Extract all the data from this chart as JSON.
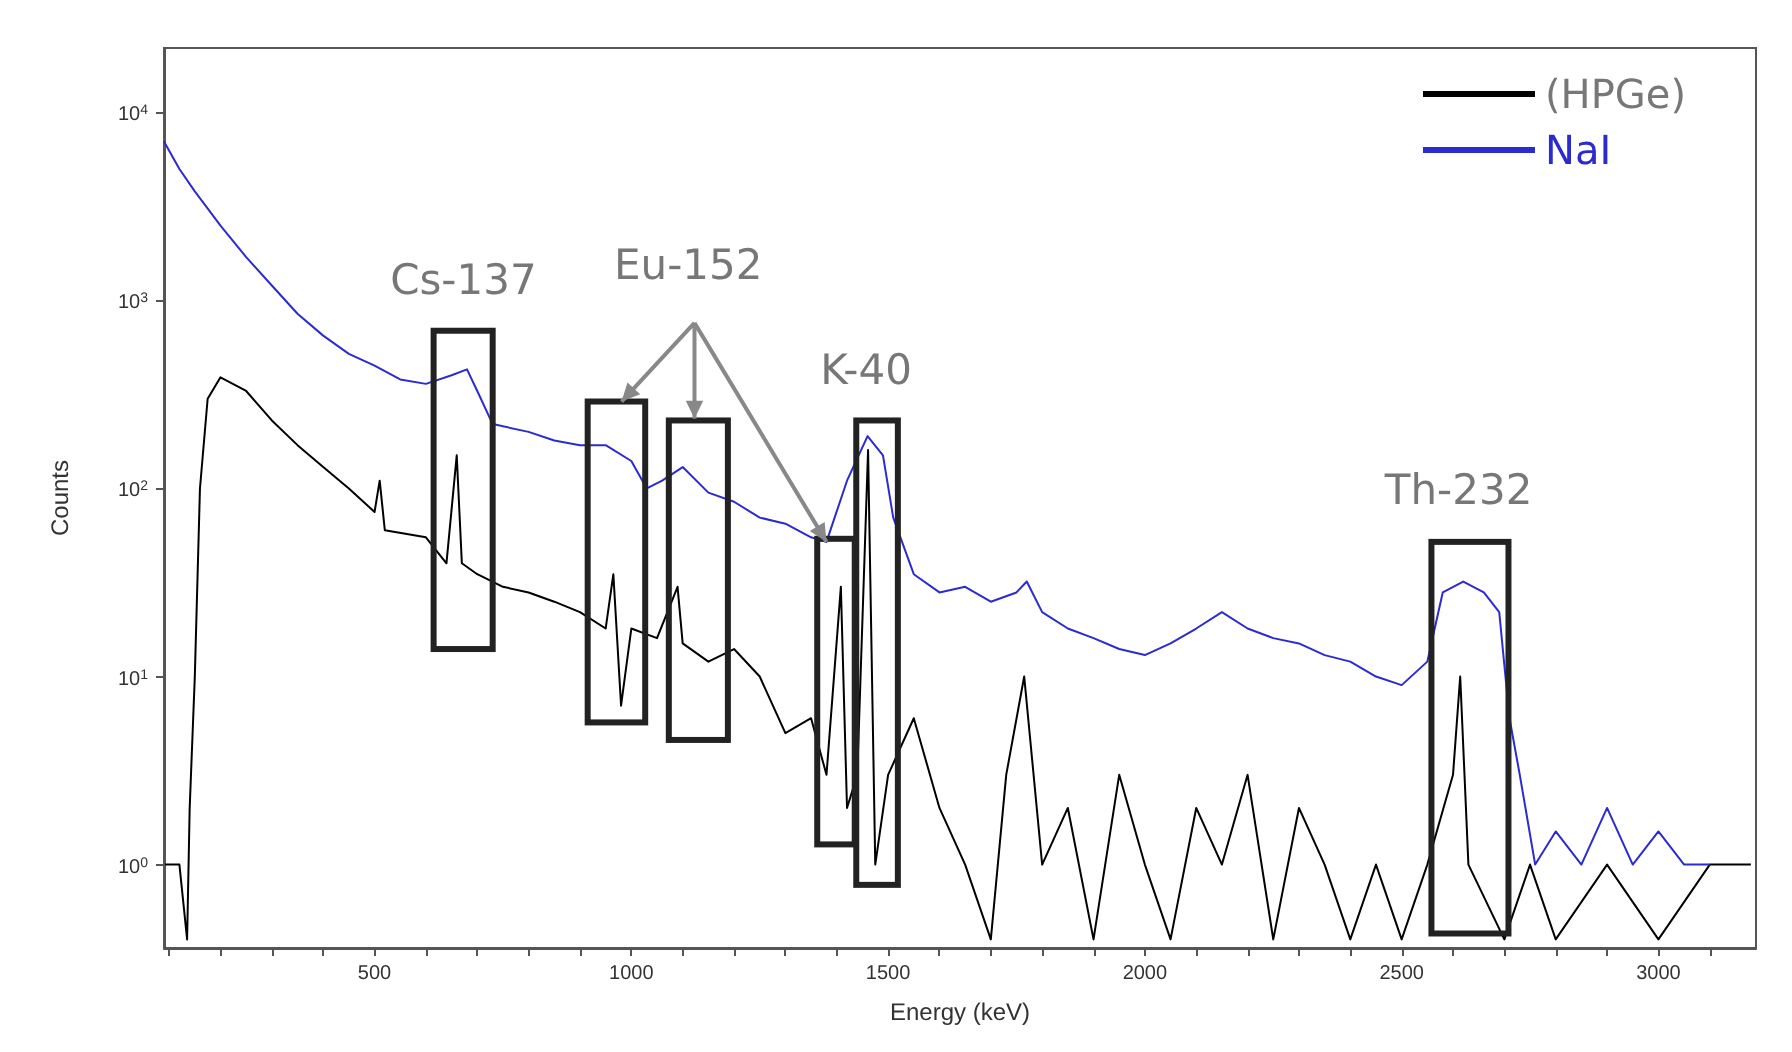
{
  "chart_data": {
    "type": "line",
    "xlabel": "Energy (keV)",
    "ylabel": "Counts",
    "log": "y",
    "grid": false,
    "legend": "top right",
    "marker": "none",
    "line_style": "solid",
    "xlim": [
      90,
      3190
    ],
    "ylim": [
      0.36,
      22000
    ],
    "xticks": [
      {
        "value": 100,
        "label": null
      },
      {
        "value": 200,
        "label": null
      },
      {
        "value": 300,
        "label": null
      },
      {
        "value": 400,
        "label": null
      },
      500,
      {
        "value": 600,
        "label": null
      },
      {
        "value": 700,
        "label": null
      },
      {
        "value": 800,
        "label": null
      },
      {
        "value": 900,
        "label": null
      },
      1000,
      {
        "value": 1100,
        "label": null
      },
      {
        "value": 1200,
        "label": null
      },
      {
        "value": 1300,
        "label": null
      },
      {
        "value": 1400,
        "label": null
      },
      1500,
      {
        "value": 1600,
        "label": null
      },
      {
        "value": 1700,
        "label": null
      },
      {
        "value": 1800,
        "label": null
      },
      {
        "value": 1900,
        "label": null
      },
      2000,
      {
        "value": 2100,
        "label": null
      },
      {
        "value": 2200,
        "label": null
      },
      {
        "value": 2300,
        "label": null
      },
      {
        "value": 2400,
        "label": null
      },
      2500,
      {
        "value": 2600,
        "label": null
      },
      {
        "value": 2700,
        "label": null
      },
      {
        "value": 2800,
        "label": null
      },
      {
        "value": 2900,
        "label": null
      },
      3000,
      {
        "value": 3100,
        "label": null
      }
    ],
    "yticks": [
      {
        "value": 1,
        "label": "10$^{0}$"
      },
      {
        "value": 10,
        "label": "10$^{1}$"
      },
      {
        "value": 100,
        "label": "10$^{2}$"
      },
      {
        "value": 1000,
        "label": "10$^{3}$"
      },
      {
        "value": 10000,
        "label": "10$^{4}$"
      }
    ],
    "series": [
      {
        "name": "(HPGe)",
        "color": "#000000",
        "x": [
          92,
          120,
          135,
          140,
          150,
          160,
          175,
          200,
          250,
          300,
          350,
          400,
          450,
          500,
          510,
          520,
          600,
          640,
          660,
          670,
          700,
          750,
          800,
          850,
          900,
          950,
          965,
          980,
          1000,
          1050,
          1090,
          1100,
          1150,
          1200,
          1250,
          1300,
          1350,
          1380,
          1408,
          1420,
          1440,
          1461,
          1475,
          1500,
          1550,
          1600,
          1650,
          1700,
          1730,
          1765,
          1800,
          1850,
          1900,
          1950,
          2000,
          2050,
          2100,
          2150,
          2200,
          2250,
          2300,
          2350,
          2400,
          2450,
          2500,
          2550,
          2600,
          2614,
          2630,
          2700,
          2750,
          2800,
          2900,
          3000,
          3100,
          3180
        ],
        "values": [
          1,
          1,
          0.4,
          2,
          10,
          100,
          300,
          390,
          330,
          230,
          170,
          130,
          100,
          75,
          110,
          60,
          55,
          40,
          150,
          40,
          35,
          30,
          28,
          25,
          22,
          18,
          35,
          7,
          18,
          16,
          30,
          15,
          12,
          14,
          10,
          5,
          6,
          3,
          30,
          2,
          3,
          160,
          1,
          3,
          6,
          2,
          1,
          0.4,
          3,
          10,
          1,
          2,
          0.4,
          3,
          1,
          0.4,
          2,
          1,
          3,
          0.4,
          2,
          1,
          0.4,
          1,
          0.4,
          1,
          3,
          10,
          1,
          0.4,
          1,
          0.4,
          1,
          0.4,
          1,
          1
        ]
      },
      {
        "name": "NaI",
        "color": "#2b2bd0",
        "x": [
          90,
          120,
          150,
          200,
          250,
          300,
          350,
          400,
          450,
          500,
          550,
          600,
          650,
          680,
          700,
          730,
          800,
          850,
          900,
          950,
          1000,
          1030,
          1060,
          1100,
          1150,
          1200,
          1250,
          1300,
          1350,
          1380,
          1420,
          1460,
          1490,
          1510,
          1550,
          1600,
          1650,
          1700,
          1750,
          1770,
          1800,
          1850,
          1900,
          1950,
          2000,
          2050,
          2100,
          2150,
          2200,
          2250,
          2300,
          2350,
          2400,
          2450,
          2500,
          2550,
          2580,
          2620,
          2660,
          2690,
          2710,
          2730,
          2760,
          2800,
          2850,
          2900,
          2950,
          3000,
          3050,
          3100
        ],
        "values": [
          7000,
          5000,
          3800,
          2500,
          1700,
          1200,
          850,
          650,
          520,
          450,
          380,
          360,
          400,
          430,
          330,
          220,
          200,
          180,
          170,
          170,
          140,
          100,
          110,
          130,
          95,
          85,
          70,
          65,
          55,
          52,
          110,
          190,
          150,
          70,
          35,
          28,
          30,
          25,
          28,
          32,
          22,
          18,
          16,
          14,
          13,
          15,
          18,
          22,
          18,
          16,
          15,
          13,
          12,
          10,
          9,
          12,
          28,
          32,
          28,
          22,
          6,
          3,
          1,
          1.5,
          1,
          2,
          1,
          1.5,
          1,
          1
        ]
      }
    ],
    "annotations": [
      "Cs-137",
      {
        "text": "Eu-152",
        "x": 1380,
        "y": 52
      },
      "K-40",
      "Th-232"
    ]
  }
}
